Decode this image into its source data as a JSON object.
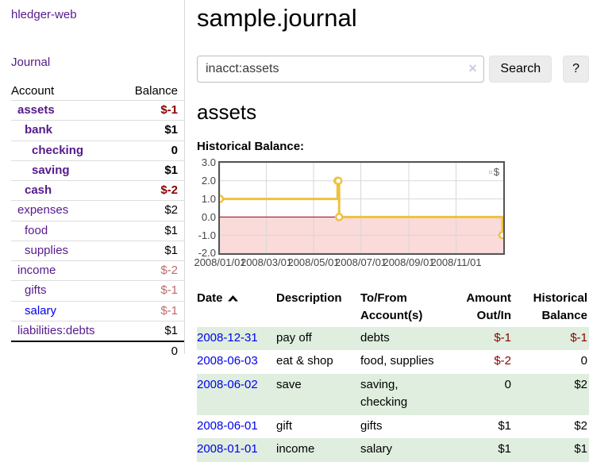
{
  "app": {
    "brand": "hledger-web"
  },
  "nav": {
    "journal": "Journal"
  },
  "sidebar": {
    "headers": {
      "account": "Account",
      "balance": "Balance"
    },
    "rows": [
      {
        "account": "assets",
        "balance": "$-1",
        "level": 0,
        "current": true
      },
      {
        "account": "bank",
        "balance": "$1",
        "level": 1,
        "current": true
      },
      {
        "account": "checking",
        "balance": "0",
        "level": 2,
        "current": true
      },
      {
        "account": "saving",
        "balance": "$1",
        "level": 2,
        "current": true
      },
      {
        "account": "cash",
        "balance": "$-2",
        "level": 1,
        "current": true
      },
      {
        "account": "expenses",
        "balance": "$2",
        "level": 0,
        "current": false
      },
      {
        "account": "food",
        "balance": "$1",
        "level": 1,
        "current": false
      },
      {
        "account": "supplies",
        "balance": "$1",
        "level": 1,
        "current": false
      },
      {
        "account": "income",
        "balance": "$-2",
        "level": 0,
        "current": false
      },
      {
        "account": "gifts",
        "balance": "$-1",
        "level": 1,
        "current": false
      },
      {
        "account": "salary",
        "balance": "$-1",
        "level": 1,
        "current": false,
        "unvisited": true
      },
      {
        "account": "liabilities:debts",
        "balance": "$1",
        "level": 0,
        "current": false
      }
    ],
    "total": "0"
  },
  "header": {
    "title": "sample.journal"
  },
  "search": {
    "value": "inacct:assets",
    "clear_glyph": "✕",
    "button_label": "Search",
    "help_label": "?"
  },
  "account_page": {
    "title": "assets",
    "chart_label": "Historical Balance:"
  },
  "chart_data": {
    "type": "line",
    "title": "Historical Balance",
    "step": true,
    "series": [
      {
        "name": "$",
        "color": "#edc240",
        "points": [
          [
            "2008-01-01",
            1
          ],
          [
            "2008-06-01",
            2
          ],
          [
            "2008-06-02",
            2
          ],
          [
            "2008-06-03",
            0
          ],
          [
            "2008-12-31",
            -1
          ]
        ]
      }
    ],
    "x_range": [
      "2008-01-01",
      "2009-01-01"
    ],
    "x_ticks": [
      "2008/01/01",
      "2008/03/01",
      "2008/05/01",
      "2008/07/01",
      "2008/09/01",
      "2008/11/01"
    ],
    "y_ticks": [
      3.0,
      2.0,
      1.0,
      0.0,
      -1.0,
      -2.0
    ],
    "ylim": [
      -2,
      3
    ],
    "grid": true,
    "grid_color": "#d8d8d8",
    "border_color": "#545454",
    "negative_fill": "#fbdada",
    "zero_line_color": "#a40000",
    "legend_position": "top-right"
  },
  "register": {
    "headers": {
      "date": "Date",
      "description": "Description",
      "tofrom": "To/From Account(s)",
      "amount": "Amount Out/In",
      "historical": "Historical Balance"
    },
    "rows": [
      {
        "date": "2008-12-31",
        "description": "pay off",
        "tofrom": "debts",
        "amount": "$-1",
        "historical": "$-1"
      },
      {
        "date": "2008-06-03",
        "description": "eat & shop",
        "tofrom": "food, supplies",
        "amount": "$-2",
        "historical": "0"
      },
      {
        "date": "2008-06-02",
        "description": "save",
        "tofrom": "saving, checking",
        "amount": "0",
        "historical": "$2"
      },
      {
        "date": "2008-06-01",
        "description": "gift",
        "tofrom": "gifts",
        "amount": "$1",
        "historical": "$2"
      },
      {
        "date": "2008-01-01",
        "description": "income",
        "tofrom": "salary",
        "amount": "$1",
        "historical": "$1"
      }
    ]
  }
}
